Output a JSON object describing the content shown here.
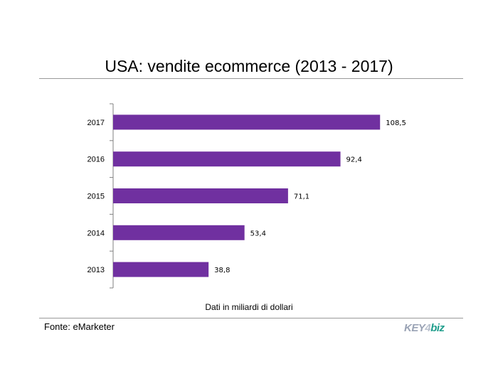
{
  "chart_data": {
    "type": "bar",
    "orientation": "horizontal",
    "title": "USA: vendite ecommerce (2013 - 2017)",
    "categories": [
      "2017",
      "2016",
      "2015",
      "2014",
      "2013"
    ],
    "values": [
      108.5,
      92.4,
      71.1,
      53.4,
      38.8
    ],
    "data_labels": [
      "108,5",
      "92,4",
      "71,1",
      "53,4",
      "38,8"
    ],
    "xlim": [
      0,
      120
    ],
    "grid": false,
    "legend": "none",
    "bar_color": "#7030a0"
  },
  "note": "Dati in miliardi di dollari",
  "source": "Fonte: eMarketer",
  "logo": {
    "text_key": "KEY",
    "text_num": "4",
    "text_biz": "biz"
  }
}
